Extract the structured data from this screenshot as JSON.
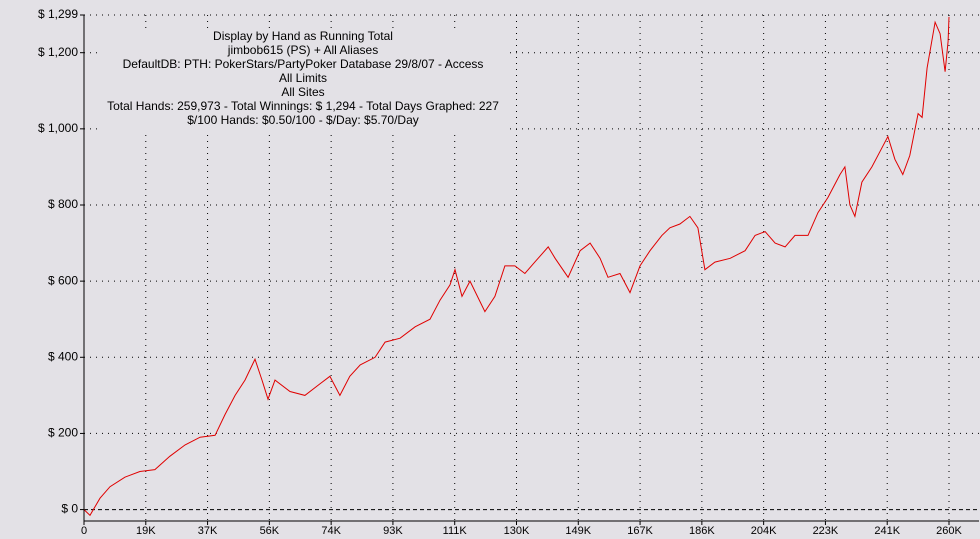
{
  "chart_data": {
    "type": "line",
    "subtitle_lines": [
      "Display by Hand as Running Total",
      "jimbob615 (PS) + All Aliases",
      "DefaultDB: PTH: PokerStars/PartyPoker Database 29/8/07 - Access",
      "All Limits",
      "All Sites",
      "Total Hands: 259,973 - Total Winnings: $ 1,294 - Total Days Graphed: 227",
      "$/100 Hands: $0.50/100 - $/Day: $5.70/Day"
    ],
    "x": [
      0,
      1800,
      4800,
      7800,
      12300,
      16800,
      21300,
      25800,
      30400,
      34900,
      39400,
      42400,
      45400,
      48400,
      51400,
      53500,
      55300,
      57400,
      61900,
      66400,
      70900,
      73900,
      76900,
      79900,
      83000,
      87500,
      90500,
      95000,
      99500,
      104000,
      107000,
      110000,
      111500,
      113600,
      116000,
      120500,
      123500,
      126500,
      129500,
      132500,
      135500,
      139500,
      141600,
      145500,
      149100,
      152100,
      155100,
      157500,
      161100,
      164100,
      167100,
      170100,
      173700,
      176100,
      179100,
      182100,
      184500,
      186600,
      189600,
      194200,
      198700,
      201700,
      204700,
      207700,
      210700,
      213700,
      217600,
      220600,
      223600,
      227200,
      228700,
      230200,
      231700,
      233800,
      236800,
      239200,
      241600,
      243700,
      246100,
      248200,
      250700,
      251900,
      253400,
      255800,
      257300,
      258800,
      259700,
      259973
    ],
    "series": [
      {
        "name": "Running Total",
        "color": "#e00000",
        "values": [
          0,
          -15,
          30,
          60,
          85,
          100,
          105,
          140,
          170,
          190,
          195,
          250,
          300,
          340,
          395,
          340,
          290,
          340,
          310,
          300,
          330,
          350,
          300,
          350,
          380,
          400,
          440,
          450,
          480,
          500,
          550,
          590,
          630,
          560,
          600,
          520,
          560,
          640,
          640,
          620,
          650,
          690,
          660,
          610,
          680,
          700,
          660,
          610,
          620,
          570,
          640,
          680,
          720,
          740,
          750,
          770,
          740,
          630,
          650,
          660,
          680,
          720,
          730,
          700,
          690,
          720,
          720,
          780,
          820,
          880,
          900,
          800,
          770,
          860,
          900,
          940,
          980,
          920,
          880,
          930,
          1040,
          1030,
          1160,
          1280,
          1250,
          1150,
          1230,
          1294
        ]
      }
    ],
    "xlim": [
      0,
      259973
    ],
    "xticks": [
      0,
      {
        "value": 18570,
        "label": "19K"
      },
      {
        "value": 37139,
        "label": "37K"
      },
      {
        "value": 55708,
        "label": "56K"
      },
      {
        "value": 74278,
        "label": "74K"
      },
      {
        "value": 92847,
        "label": "93K"
      },
      {
        "value": 111417,
        "label": "111K"
      },
      {
        "value": 129986,
        "label": "130K"
      },
      {
        "value": 148556,
        "label": "149K"
      },
      {
        "value": 167125,
        "label": "167K"
      },
      {
        "value": 185695,
        "label": "186K"
      },
      {
        "value": 204264,
        "label": "204K"
      },
      {
        "value": 222834,
        "label": "223K"
      },
      {
        "value": 241403,
        "label": "241K"
      },
      {
        "value": 259973,
        "label": "260K"
      }
    ],
    "ylim": [
      -30,
      1299
    ],
    "yticks": [
      {
        "value": 0,
        "label": "$ 0"
      },
      {
        "value": 200,
        "label": "$ 200"
      },
      {
        "value": 400,
        "label": "$ 400"
      },
      {
        "value": 600,
        "label": "$ 600"
      },
      {
        "value": 800,
        "label": "$ 800"
      },
      {
        "value": 1000,
        "label": "$ 1,000"
      },
      {
        "value": 1200,
        "label": "$ 1,200"
      },
      {
        "value": 1299,
        "label": "$ 1,299"
      }
    ],
    "grid": true
  }
}
